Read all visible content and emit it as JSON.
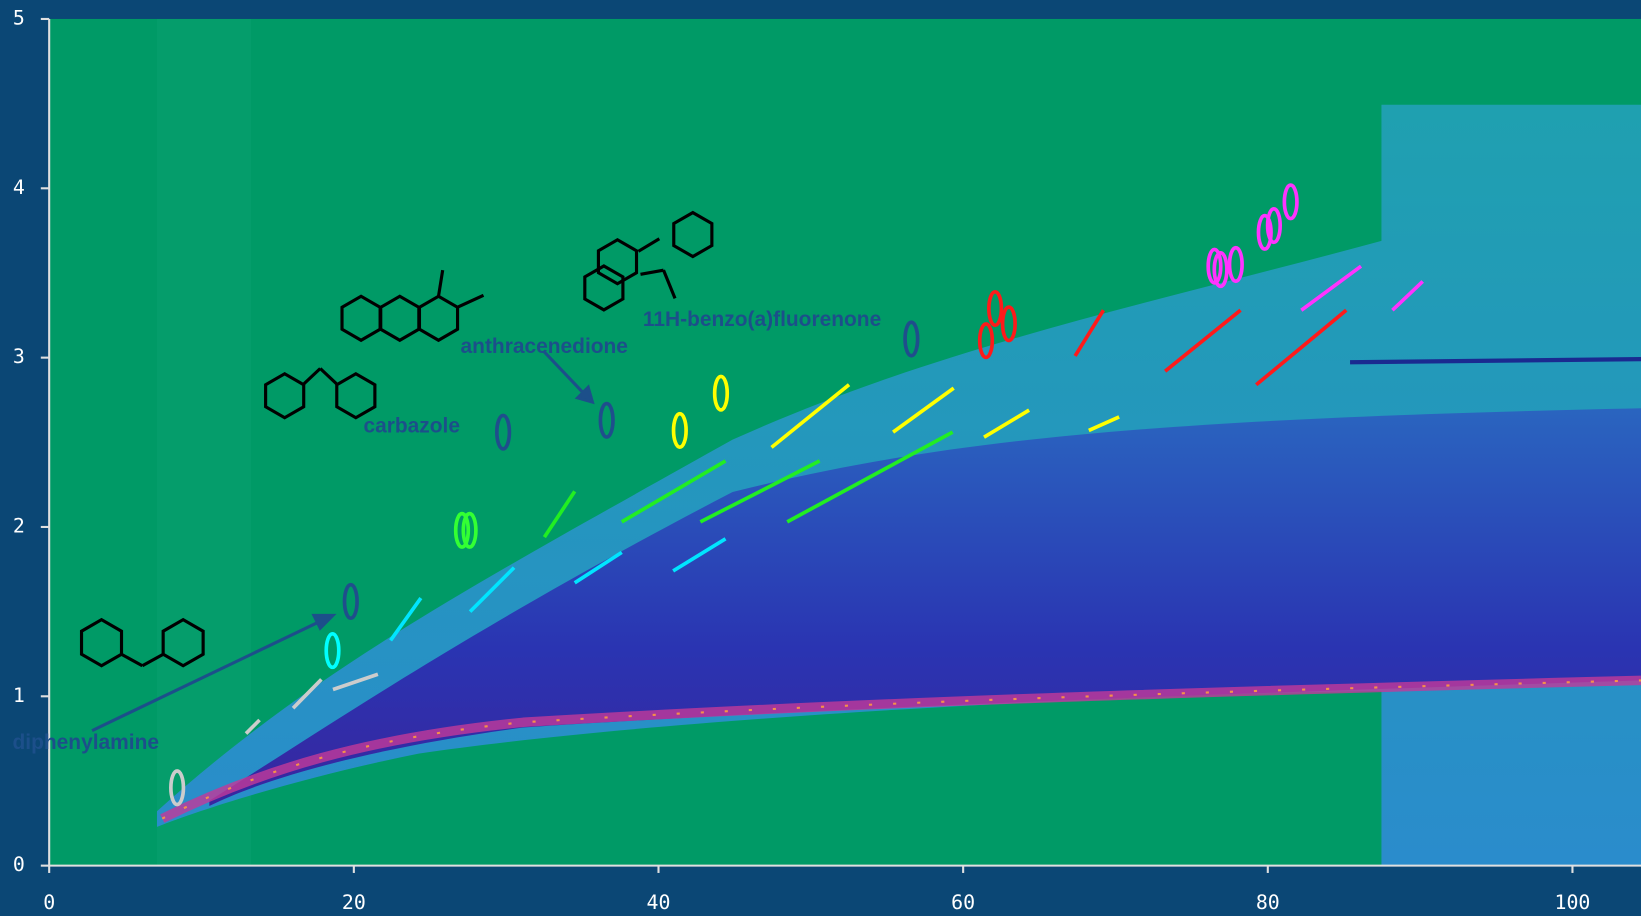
{
  "chart_data": {
    "type": "contour",
    "xlim": [
      0,
      104.5
    ],
    "ylim": [
      0,
      5
    ],
    "xticks": [
      0,
      20,
      40,
      60,
      80,
      100
    ],
    "yticks": [
      0,
      1,
      2,
      3,
      4,
      5
    ],
    "annotations": [
      {
        "text": "diphenylamine",
        "x": 2.4,
        "y": 0.72
      },
      {
        "text": "carbazole",
        "x": 23.8,
        "y": 2.59
      },
      {
        "text": "anthracenedione",
        "x": 32.5,
        "y": 3.06
      },
      {
        "text": "11H-benzo(a)fluorenone",
        "x": 46.8,
        "y": 3.22
      }
    ],
    "ellipses": [
      {
        "color": "#cccccc",
        "x": 8.4,
        "y": 0.46
      },
      {
        "color": "#00ffff",
        "x": 18.6,
        "y": 1.27
      },
      {
        "color": "#1f4e8c",
        "x": 19.8,
        "y": 1.56
      },
      {
        "color": "#33ff33",
        "x": 27.1,
        "y": 1.98
      },
      {
        "color": "#33ff33",
        "x": 27.6,
        "y": 1.98
      },
      {
        "color": "#1f4e8c",
        "x": 29.8,
        "y": 2.56
      },
      {
        "color": "#1f4e8c",
        "x": 36.6,
        "y": 2.63
      },
      {
        "color": "#ffff00",
        "x": 41.4,
        "y": 2.57
      },
      {
        "color": "#ffff00",
        "x": 44.1,
        "y": 2.79
      },
      {
        "color": "#1f4e8c",
        "x": 56.6,
        "y": 3.11
      },
      {
        "color": "#ff1a1a",
        "x": 61.5,
        "y": 3.1
      },
      {
        "color": "#ff1a1a",
        "x": 62.1,
        "y": 3.29
      },
      {
        "color": "#ff1a1a",
        "x": 63.0,
        "y": 3.2
      },
      {
        "color": "#ff33ff",
        "x": 76.5,
        "y": 3.54
      },
      {
        "color": "#ff33ff",
        "x": 76.9,
        "y": 3.52
      },
      {
        "color": "#ff33ff",
        "x": 77.9,
        "y": 3.55
      },
      {
        "color": "#ff33ff",
        "x": 79.8,
        "y": 3.74
      },
      {
        "color": "#ff33ff",
        "x": 80.4,
        "y": 3.78
      },
      {
        "color": "#ff33ff",
        "x": 81.5,
        "y": 3.92
      }
    ],
    "segments": [
      {
        "color": "#cccccc",
        "x": [
          12.92,
          13.81
        ],
        "y": [
          0.78,
          0.86
        ]
      },
      {
        "color": "#cccccc",
        "x": [
          16.01,
          17.87
        ],
        "y": [
          0.93,
          1.1
        ]
      },
      {
        "color": "#cccccc",
        "x": [
          18.63,
          21.58
        ],
        "y": [
          1.04,
          1.13
        ]
      },
      {
        "color": "#00e5ff",
        "x": [
          22.41,
          24.4
        ],
        "y": [
          1.33,
          1.58
        ]
      },
      {
        "color": "#00e5ff",
        "x": [
          27.63,
          30.52
        ],
        "y": [
          1.5,
          1.76
        ]
      },
      {
        "color": "#00e5ff",
        "x": [
          34.5,
          37.59
        ],
        "y": [
          1.67,
          1.85
        ]
      },
      {
        "color": "#00e5ff",
        "x": [
          40.96,
          44.4
        ],
        "y": [
          1.74,
          1.93
        ]
      },
      {
        "color": "#22ee22",
        "x": [
          32.51,
          34.5
        ],
        "y": [
          1.94,
          2.21
        ]
      },
      {
        "color": "#22ee22",
        "x": [
          37.59,
          44.4
        ],
        "y": [
          2.03,
          2.39
        ]
      },
      {
        "color": "#22ee22",
        "x": [
          42.75,
          50.58
        ],
        "y": [
          2.03,
          2.39
        ]
      },
      {
        "color": "#22ee22",
        "x": [
          48.45,
          59.31
        ],
        "y": [
          2.03,
          2.56
        ]
      },
      {
        "color": "#ffff00",
        "x": [
          47.42,
          52.51
        ],
        "y": [
          2.47,
          2.84
        ]
      },
      {
        "color": "#ffff00",
        "x": [
          55.4,
          59.38
        ],
        "y": [
          2.56,
          2.82
        ]
      },
      {
        "color": "#ffff00",
        "x": [
          61.37,
          64.33
        ],
        "y": [
          2.53,
          2.69
        ]
      },
      {
        "color": "#ffff00",
        "x": [
          68.25,
          70.24
        ],
        "y": [
          2.57,
          2.65
        ]
      },
      {
        "color": "#ff1a1a",
        "x": [
          67.35,
          69.21
        ],
        "y": [
          3.01,
          3.28
        ]
      },
      {
        "color": "#ff1a1a",
        "x": [
          73.26,
          78.21
        ],
        "y": [
          2.92,
          3.28
        ]
      },
      {
        "color": "#ff1a1a",
        "x": [
          79.24,
          85.15
        ],
        "y": [
          2.84,
          3.28
        ]
      },
      {
        "color": "#ff33ff",
        "x": [
          82.2,
          86.12
        ],
        "y": [
          3.28,
          3.54
        ]
      },
      {
        "color": "#ff33ff",
        "x": [
          88.18,
          90.17
        ],
        "y": [
          3.28,
          3.45
        ]
      }
    ]
  }
}
